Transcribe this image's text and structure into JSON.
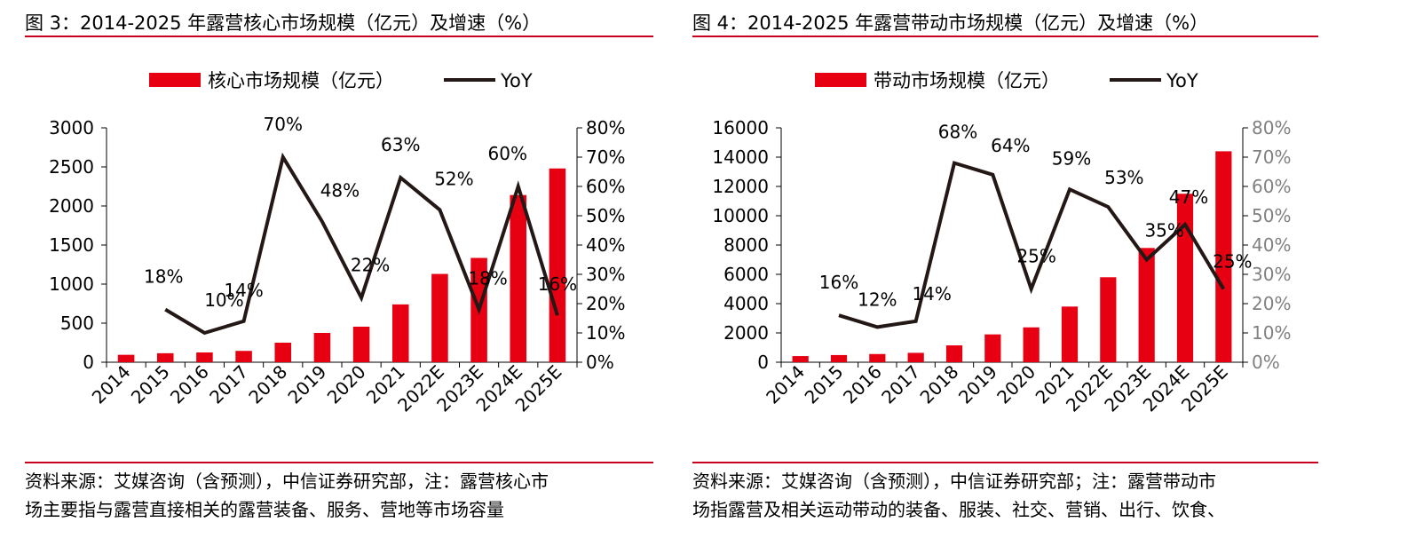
{
  "figures": [
    {
      "title": "图 3：2014-2025 年露营核心市场规模（亿元）及增速（%）",
      "note_lines": [
        "资料来源：艾媒咨询（含预测），中信证券研究部，注：露营核心市",
        "场主要指与露营直接相关的露营装备、服务、营地等市场容量"
      ],
      "legend": {
        "bar": "核心市场规模（亿元）",
        "line": "YoY"
      }
    },
    {
      "title": "图 4：2014-2025 年露营带动市场规模（亿元）及增速（%）",
      "note_lines": [
        "资料来源：艾媒咨询（含预测），中信证券研究部；注：露营带动市",
        "场指露营及相关运动带动的装备、服装、社交、营销、出行、饮食、"
      ],
      "legend": {
        "bar": "带动市场规模（亿元）",
        "line": "YoY"
      }
    }
  ],
  "colors": {
    "bar": "#e60012",
    "line": "#231815",
    "rule": "#c8001e",
    "axis": "#000000",
    "right_axis_gray": "#808080"
  },
  "chart_data": [
    {
      "type": "bar",
      "categories": [
        "2014",
        "2015",
        "2016",
        "2017",
        "2018",
        "2019",
        "2020",
        "2021",
        "2022E",
        "2023E",
        "2024E",
        "2025E"
      ],
      "series": [
        {
          "name": "核心市场规模（亿元）",
          "type": "bar",
          "axis": "left",
          "values": [
            95,
            115,
            125,
            145,
            250,
            375,
            455,
            740,
            1130,
            1335,
            2140,
            2480
          ]
        },
        {
          "name": "YoY",
          "type": "line",
          "axis": "right",
          "values": [
            null,
            0.18,
            0.1,
            0.14,
            0.7,
            0.48,
            0.22,
            0.63,
            0.52,
            0.18,
            0.6,
            0.16
          ],
          "labels": [
            "",
            "18%",
            "10%",
            "14%",
            "70%",
            "48%",
            "22%",
            "63%",
            "52%",
            "18%",
            "60%",
            "16%"
          ]
        }
      ],
      "left_axis": {
        "ylim": [
          0,
          3000
        ],
        "ticks": [
          "0",
          "500",
          "1000",
          "1500",
          "2000",
          "2500",
          "3000"
        ]
      },
      "right_axis": {
        "ylim": [
          0,
          0.8
        ],
        "ticks": [
          "0%",
          "10%",
          "20%",
          "30%",
          "40%",
          "50%",
          "60%",
          "70%",
          "80%"
        ]
      },
      "grid": false,
      "legend_position": "top-center"
    },
    {
      "type": "bar",
      "categories": [
        "2014",
        "2015",
        "2016",
        "2017",
        "2018",
        "2019",
        "2020",
        "2021",
        "2022E",
        "2023E",
        "2024E",
        "2025E"
      ],
      "series": [
        {
          "name": "带动市场规模（亿元）",
          "type": "bar",
          "axis": "left",
          "values": [
            420,
            490,
            560,
            640,
            1150,
            1900,
            2380,
            3800,
            5800,
            7800,
            11500,
            14400
          ]
        },
        {
          "name": "YoY",
          "type": "line",
          "axis": "right",
          "values": [
            null,
            0.16,
            0.12,
            0.14,
            0.68,
            0.64,
            0.25,
            0.59,
            0.53,
            0.35,
            0.47,
            0.25
          ],
          "labels": [
            "",
            "16%",
            "12%",
            "14%",
            "68%",
            "64%",
            "25%",
            "59%",
            "53%",
            "35%",
            "47%",
            "25%"
          ]
        }
      ],
      "left_axis": {
        "ylim": [
          0,
          16000
        ],
        "ticks": [
          "0",
          "2000",
          "4000",
          "6000",
          "8000",
          "10000",
          "12000",
          "14000",
          "16000"
        ]
      },
      "right_axis": {
        "ylim": [
          0,
          0.8
        ],
        "ticks": [
          "0%",
          "10%",
          "20%",
          "30%",
          "40%",
          "50%",
          "60%",
          "70%",
          "80%"
        ]
      },
      "grid": false,
      "legend_position": "top-center"
    }
  ]
}
